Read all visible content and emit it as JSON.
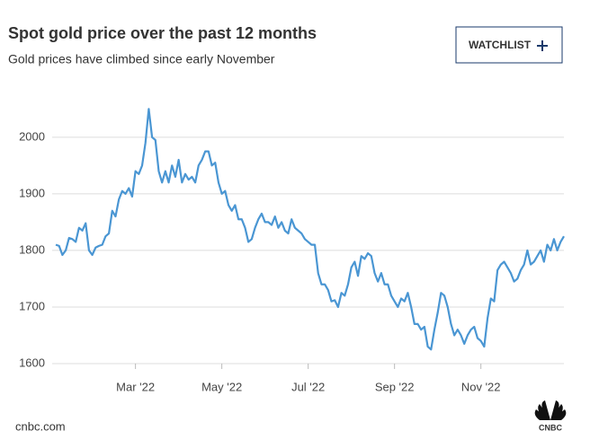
{
  "chart_data": {
    "type": "line",
    "title": "Spot gold price over the past 12 months",
    "subtitle": "Gold prices have climbed since early November",
    "categories": [
      null,
      null,
      null,
      null,
      null,
      null,
      null,
      null,
      null,
      null,
      null,
      null,
      null,
      null,
      null,
      null,
      null,
      null,
      null,
      null,
      null,
      null,
      null,
      null,
      "Mar '22",
      null,
      null,
      null,
      null,
      null,
      null,
      null,
      null,
      null,
      null,
      null,
      null,
      null,
      null,
      null,
      null,
      null,
      null,
      null,
      null,
      null,
      null,
      null,
      null,
      null,
      "May '22",
      null,
      null,
      null,
      null,
      null,
      null,
      null,
      null,
      null,
      null,
      null,
      null,
      null,
      null,
      null,
      null,
      null,
      null,
      null,
      null,
      null,
      null,
      null,
      null,
      null,
      "Jul '22",
      null,
      null,
      null,
      null,
      null,
      null,
      null,
      null,
      null,
      null,
      null,
      null,
      null,
      null,
      null,
      null,
      null,
      null,
      null,
      null,
      null,
      null,
      null,
      null,
      null,
      "Sep '22",
      null,
      null,
      null,
      null,
      null,
      null,
      null,
      null,
      null,
      null,
      null,
      null,
      null,
      null,
      null,
      null,
      null,
      null,
      null,
      null,
      null,
      null,
      null,
      null,
      null,
      "Nov '22",
      null,
      null,
      null,
      null,
      null,
      null,
      null,
      null,
      null,
      null,
      null,
      null,
      null,
      null,
      null,
      null,
      null,
      null,
      null,
      null,
      null,
      null,
      null,
      null,
      null
    ],
    "values": [
      1810,
      1808,
      1792,
      1800,
      1822,
      1820,
      1815,
      1840,
      1835,
      1848,
      1800,
      1792,
      1805,
      1808,
      1810,
      1825,
      1830,
      1870,
      1860,
      1890,
      1905,
      1900,
      1910,
      1895,
      1940,
      1935,
      1950,
      1990,
      2050,
      2000,
      1995,
      1940,
      1920,
      1940,
      1920,
      1950,
      1930,
      1960,
      1920,
      1935,
      1925,
      1930,
      1920,
      1950,
      1960,
      1975,
      1975,
      1950,
      1955,
      1920,
      1900,
      1905,
      1880,
      1870,
      1880,
      1855,
      1855,
      1840,
      1815,
      1820,
      1840,
      1855,
      1865,
      1850,
      1850,
      1845,
      1860,
      1840,
      1850,
      1835,
      1830,
      1855,
      1840,
      1835,
      1830,
      1820,
      1815,
      1810,
      1810,
      1760,
      1740,
      1740,
      1730,
      1710,
      1712,
      1700,
      1725,
      1720,
      1740,
      1770,
      1780,
      1755,
      1790,
      1785,
      1795,
      1790,
      1760,
      1745,
      1760,
      1740,
      1740,
      1720,
      1710,
      1700,
      1715,
      1710,
      1725,
      1700,
      1670,
      1670,
      1660,
      1665,
      1630,
      1625,
      1660,
      1690,
      1725,
      1720,
      1700,
      1670,
      1650,
      1660,
      1650,
      1635,
      1650,
      1660,
      1665,
      1645,
      1640,
      1630,
      1680,
      1715,
      1710,
      1765,
      1775,
      1780,
      1770,
      1760,
      1745,
      1750,
      1765,
      1775,
      1800,
      1775,
      1780,
      1790,
      1800,
      1780,
      1810,
      1800,
      1820,
      1800,
      1815,
      1825
    ],
    "color": "#4a96d3",
    "ylim": [
      1600,
      2060
    ],
    "yticks": [
      1600,
      1700,
      1800,
      1900,
      2000
    ],
    "grid": true
  },
  "button": "WATCHLIST",
  "footer": {
    "source": "cnbc.com",
    "logo": "CNBC"
  }
}
